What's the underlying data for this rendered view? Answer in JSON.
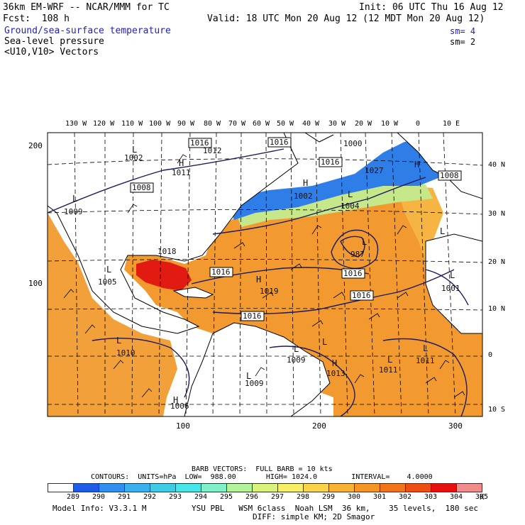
{
  "header": {
    "model_title": "36km EM-WRF -- NCAR/MMM for TC",
    "init": "Init: 06 UTC Thu 16 Aug 12",
    "fcst": "Fcst:  108 h",
    "valid": "Valid: 18 UTC Mon 20 Aug 12 (12 MDT Mon 20 Aug 12)",
    "field1": "Ground/sea-surface temperature",
    "field1_sm": "sm= 4",
    "field2": "Sea-level pressure",
    "field2_sm": "sm= 2",
    "field3": "<U10,V10> Vectors"
  },
  "map": {
    "lon_labels": [
      "130 W",
      "120 W",
      "110 W",
      "100 W",
      "90 W",
      "80 W",
      "70 W",
      "60 W",
      "50 W",
      "40 W",
      "30 W",
      "20 W",
      "10 W",
      "0",
      "10 E"
    ],
    "lat_labels": [
      "40 N",
      "30 N",
      "20 N",
      "10 N",
      "0",
      "10 S"
    ],
    "grid_left_labels": [
      "200",
      "100"
    ],
    "grid_bottom_labels": [
      "100",
      "200",
      "300"
    ],
    "pressure_labels": [
      {
        "text": "1002",
        "kind": "plain"
      },
      {
        "text": "1011",
        "kind": "plain"
      },
      {
        "text": "1008",
        "kind": "boxed"
      },
      {
        "text": "1016",
        "kind": "boxed"
      },
      {
        "text": "1000",
        "kind": "plain"
      },
      {
        "text": "1016",
        "kind": "boxed"
      },
      {
        "text": "1016",
        "kind": "boxed"
      },
      {
        "text": "1027",
        "kind": "plain"
      },
      {
        "text": "1008",
        "kind": "boxed"
      },
      {
        "text": "1009",
        "kind": "plain"
      },
      {
        "text": "1002",
        "kind": "plain"
      },
      {
        "text": "1004",
        "kind": "plain"
      },
      {
        "text": "1018",
        "kind": "plain"
      },
      {
        "text": "1012",
        "kind": "plain"
      },
      {
        "text": "987",
        "kind": "plain"
      },
      {
        "text": "1016",
        "kind": "boxed"
      },
      {
        "text": "1016",
        "kind": "boxed"
      },
      {
        "text": "1016",
        "kind": "boxed"
      },
      {
        "text": "1005",
        "kind": "plain"
      },
      {
        "text": "1019",
        "kind": "plain"
      },
      {
        "text": "1001",
        "kind": "plain"
      },
      {
        "text": "1016",
        "kind": "boxed"
      },
      {
        "text": "1010",
        "kind": "plain"
      },
      {
        "text": "1009",
        "kind": "plain"
      },
      {
        "text": "1013",
        "kind": "plain"
      },
      {
        "text": "1011",
        "kind": "plain"
      },
      {
        "text": "1011",
        "kind": "plain"
      },
      {
        "text": "1009",
        "kind": "plain"
      },
      {
        "text": "1006",
        "kind": "plain"
      }
    ],
    "centers": [
      "H",
      "H",
      "H",
      "H",
      "L",
      "L",
      "L",
      "L",
      "L",
      "L",
      "L",
      "L",
      "L",
      "H",
      "L",
      "L",
      "H",
      "L",
      "L"
    ]
  },
  "footer": {
    "barb": "BARB VECTORS:  FULL BARB = 10 kts",
    "contours": "CONTOURS:  UNITS=hPa  LOW=  988.00       HIGH= 1024.0        INTERVAL=    4.0000",
    "legend_values": [
      "289",
      "290",
      "291",
      "292",
      "293",
      "294",
      "295",
      "296",
      "297",
      "298",
      "299",
      "300",
      "301",
      "302",
      "303",
      "304",
      "305"
    ],
    "legend_colors": [
      "#ffffff",
      "#1e5be6",
      "#2e8ff0",
      "#39b1ee",
      "#3ecbe8",
      "#46e6e6",
      "#7ff0c8",
      "#b3f39a",
      "#d8f27a",
      "#f6ef65",
      "#fbd34a",
      "#f8b333",
      "#f59521",
      "#f07418",
      "#ed4f10",
      "#e61010",
      "#f08c8c"
    ],
    "legend_unit": "K",
    "model_info": "Model Info: V3.3.1 M",
    "physics1": "YSU PBL   WSM 6class  Noah LSM  36 km,    35 levels,  180 sec",
    "physics2": "DIFF: simple KM; 2D Smagor"
  },
  "colors": {
    "ocean_warm": "#f39a2c",
    "ocean_hot": "#e21b12",
    "land": "#ffffff",
    "cold_sst": "#2f7ee8"
  }
}
